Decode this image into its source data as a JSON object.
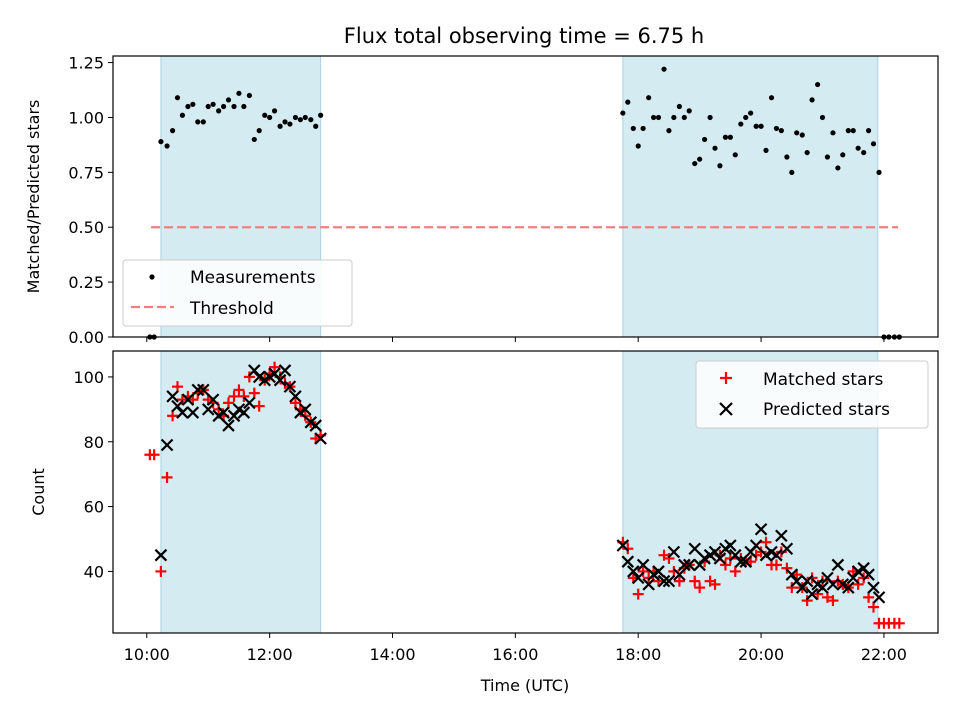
{
  "chart_data": [
    {
      "type": "scatter",
      "title": "Flux total observing time = 6.75 h",
      "ylabel": "Matched/Predicted stars",
      "xlim_hours": [
        9.45,
        22.88
      ],
      "ylim": [
        0,
        1.28
      ],
      "yticks": [
        "0.00",
        "0.25",
        "0.50",
        "0.75",
        "1.00",
        "1.25"
      ],
      "ytick_values": [
        0,
        0.25,
        0.5,
        0.75,
        1.0,
        1.25
      ],
      "legend_position": "lower-left",
      "shaded_intervals_hours": [
        [
          10.23,
          12.83
        ],
        [
          17.75,
          21.9
        ]
      ],
      "shade_color": "#d4ebf2",
      "legend": {
        "measurements": "Measurements",
        "threshold": "Threshold"
      },
      "threshold": {
        "y": 0.5,
        "x_from": 10.07,
        "x_to": 22.23,
        "color": "#f08080"
      },
      "series": [
        {
          "name": "Measurements",
          "color": "#000000",
          "x": [
            10.05,
            10.12,
            10.23,
            10.33,
            10.42,
            10.5,
            10.58,
            10.67,
            10.75,
            10.83,
            10.92,
            11.0,
            11.08,
            11.17,
            11.25,
            11.33,
            11.42,
            11.5,
            11.58,
            11.67,
            11.75,
            11.83,
            11.92,
            12.0,
            12.08,
            12.17,
            12.25,
            12.33,
            12.42,
            12.5,
            12.58,
            12.67,
            12.75,
            12.83,
            17.75,
            17.83,
            17.92,
            18.0,
            18.08,
            18.17,
            18.25,
            18.33,
            18.42,
            18.5,
            18.58,
            18.67,
            18.75,
            18.83,
            18.92,
            19.0,
            19.08,
            19.17,
            19.25,
            19.33,
            19.42,
            19.5,
            19.58,
            19.67,
            19.75,
            19.83,
            19.92,
            20.0,
            20.08,
            20.17,
            20.25,
            20.33,
            20.42,
            20.5,
            20.58,
            20.67,
            20.75,
            20.83,
            20.92,
            21.0,
            21.08,
            21.17,
            21.25,
            21.33,
            21.42,
            21.5,
            21.58,
            21.67,
            21.75,
            21.83,
            21.92,
            22.0,
            22.08,
            22.17,
            22.25
          ],
          "y": [
            0.0,
            0.0,
            0.89,
            0.87,
            0.94,
            1.09,
            1.01,
            1.05,
            1.06,
            0.98,
            0.98,
            1.05,
            1.06,
            1.03,
            1.05,
            1.08,
            1.05,
            1.11,
            1.05,
            1.1,
            0.9,
            0.94,
            1.01,
            1.0,
            1.03,
            0.96,
            0.98,
            0.97,
            1.0,
            0.99,
            1.0,
            0.99,
            0.96,
            1.01,
            1.02,
            1.07,
            0.95,
            0.87,
            0.95,
            1.09,
            1.0,
            1.0,
            1.22,
            0.94,
            1.0,
            1.05,
            1.0,
            1.03,
            0.79,
            0.81,
            0.9,
            1.0,
            0.86,
            0.78,
            0.91,
            0.91,
            0.83,
            0.97,
            1.0,
            1.02,
            0.96,
            0.96,
            0.85,
            1.09,
            0.95,
            0.94,
            0.82,
            0.75,
            0.93,
            0.92,
            0.84,
            1.08,
            1.15,
            1.0,
            0.82,
            0.93,
            0.77,
            0.83,
            0.94,
            0.94,
            0.86,
            0.84,
            0.94,
            0.88,
            0.75,
            0.0,
            0.0,
            0.0,
            0.0
          ]
        }
      ]
    },
    {
      "type": "scatter",
      "xlabel": "Time (UTC)",
      "ylabel": "Count",
      "xlim_hours": [
        9.45,
        22.88
      ],
      "xticks": [
        "10:00",
        "12:00",
        "14:00",
        "16:00",
        "18:00",
        "20:00",
        "22:00"
      ],
      "xtick_values_hours": [
        10,
        12,
        14,
        16,
        18,
        20,
        22
      ],
      "ylim": [
        21,
        108
      ],
      "yticks": [
        "40",
        "60",
        "80",
        "100"
      ],
      "ytick_values": [
        40,
        60,
        80,
        100
      ],
      "legend_position": "upper-right",
      "shaded_intervals_hours": [
        [
          10.23,
          12.83
        ],
        [
          17.75,
          21.9
        ]
      ],
      "legend": {
        "matched": "Matched stars",
        "predicted": "Predicted stars"
      },
      "series": [
        {
          "name": "Matched stars",
          "color": "#ff0000",
          "marker": "plus",
          "x": [
            10.05,
            10.12,
            10.23,
            10.33,
            10.42,
            10.5,
            10.58,
            10.67,
            10.75,
            10.83,
            10.92,
            11.0,
            11.08,
            11.17,
            11.25,
            11.33,
            11.42,
            11.5,
            11.58,
            11.67,
            11.75,
            11.83,
            11.92,
            12.0,
            12.08,
            12.17,
            12.25,
            12.33,
            12.42,
            12.5,
            12.58,
            12.67,
            12.75,
            12.83,
            17.75,
            17.83,
            17.92,
            18.0,
            18.08,
            18.17,
            18.25,
            18.33,
            18.42,
            18.5,
            18.58,
            18.67,
            18.75,
            18.83,
            18.92,
            19.0,
            19.08,
            19.17,
            19.25,
            19.33,
            19.42,
            19.5,
            19.58,
            19.67,
            19.75,
            19.83,
            19.92,
            20.0,
            20.08,
            20.17,
            20.25,
            20.33,
            20.42,
            20.5,
            20.58,
            20.67,
            20.75,
            20.83,
            20.92,
            21.0,
            21.08,
            21.17,
            21.25,
            21.33,
            21.42,
            21.5,
            21.58,
            21.67,
            21.75,
            21.83,
            21.92,
            22.0,
            22.08,
            22.17,
            22.25
          ],
          "y": [
            76,
            76,
            40,
            69,
            88,
            97,
            93,
            94,
            93,
            95,
            96,
            93,
            92,
            90,
            88,
            92,
            94,
            96,
            94,
            100,
            95,
            91,
            99,
            101,
            103,
            100,
            98,
            97,
            92,
            90,
            88,
            86,
            81,
            82,
            49,
            47,
            38,
            33,
            40,
            38,
            40,
            37,
            45,
            44,
            40,
            37,
            41,
            42,
            37,
            35,
            43,
            37,
            36,
            45,
            42,
            44,
            40,
            44,
            43,
            43,
            45,
            46,
            49,
            42,
            42,
            46,
            41,
            35,
            39,
            35,
            31,
            38,
            33,
            37,
            32,
            31,
            37,
            36,
            35,
            40,
            36,
            38,
            32,
            29,
            24,
            24,
            24,
            24,
            24
          ]
        },
        {
          "name": "Predicted stars",
          "color": "#000000",
          "marker": "x",
          "x": [
            10.23,
            10.33,
            10.42,
            10.5,
            10.58,
            10.67,
            10.75,
            10.83,
            10.92,
            11.0,
            11.08,
            11.17,
            11.25,
            11.33,
            11.42,
            11.5,
            11.58,
            11.67,
            11.75,
            11.83,
            11.92,
            12.0,
            12.08,
            12.17,
            12.25,
            12.33,
            12.42,
            12.5,
            12.58,
            12.67,
            12.75,
            12.83,
            17.75,
            17.83,
            17.92,
            18.0,
            18.08,
            18.17,
            18.25,
            18.33,
            18.42,
            18.5,
            18.58,
            18.67,
            18.75,
            18.83,
            18.92,
            19.0,
            19.08,
            19.17,
            19.25,
            19.33,
            19.42,
            19.5,
            19.58,
            19.67,
            19.75,
            19.83,
            19.92,
            20.0,
            20.08,
            20.17,
            20.25,
            20.33,
            20.42,
            20.5,
            20.58,
            20.67,
            20.75,
            20.83,
            20.92,
            21.0,
            21.08,
            21.17,
            21.25,
            21.33,
            21.42,
            21.5,
            21.58,
            21.67,
            21.75,
            21.83,
            21.92
          ],
          "y": [
            45,
            79,
            94,
            91,
            89,
            93,
            89,
            96,
            96,
            90,
            93,
            88,
            89,
            85,
            88,
            90,
            89,
            92,
            102,
            100,
            99,
            100,
            101,
            99,
            102,
            97,
            94,
            89,
            90,
            86,
            85,
            81,
            48,
            43,
            40,
            38,
            42,
            36,
            39,
            40,
            37,
            37,
            46,
            39,
            42,
            42,
            47,
            42,
            44,
            45,
            46,
            44,
            47,
            48,
            45,
            43,
            43,
            46,
            48,
            53,
            45,
            46,
            45,
            51,
            47,
            39,
            37,
            35,
            37,
            33,
            36,
            35,
            38,
            36,
            42,
            36,
            35,
            38,
            40,
            41,
            39,
            35,
            32
          ]
        }
      ]
    }
  ]
}
